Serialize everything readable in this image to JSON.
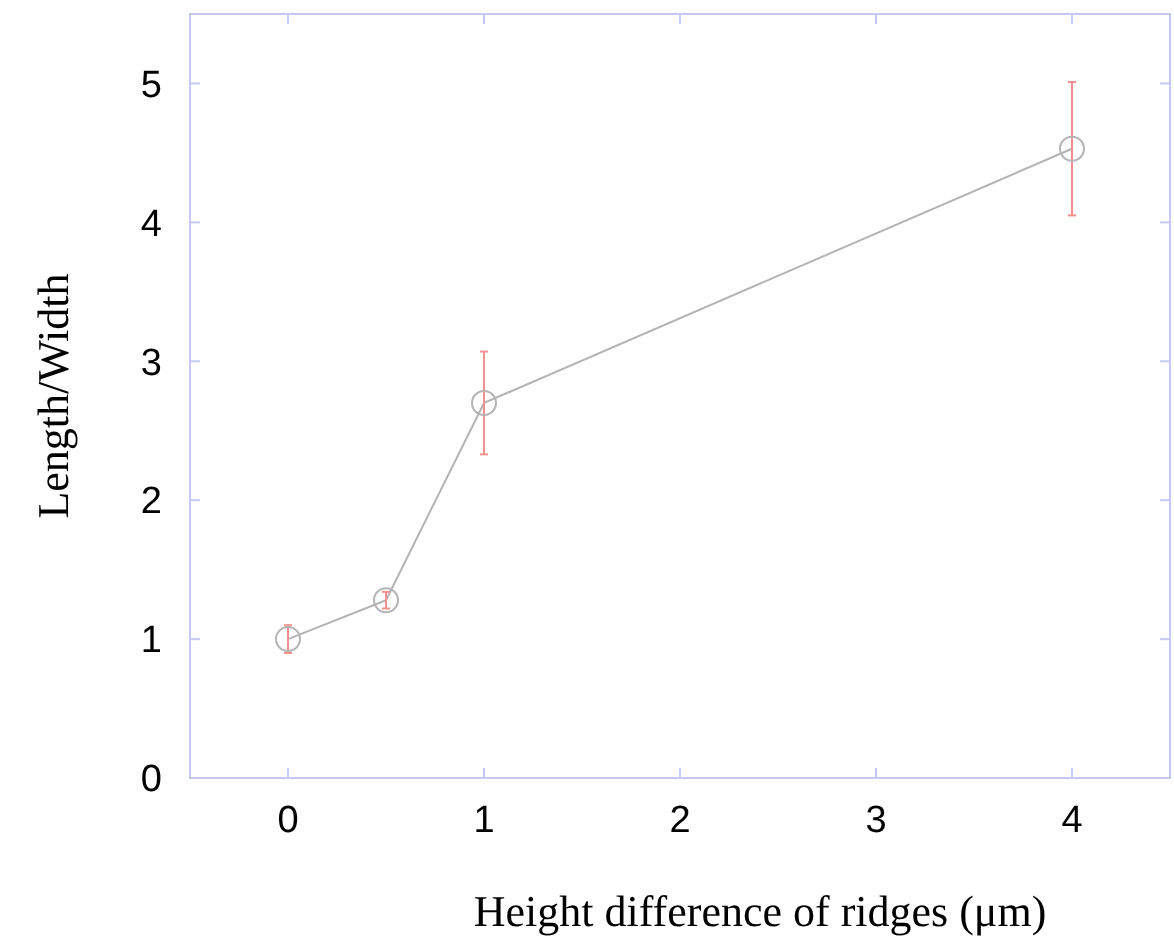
{
  "chart_data": {
    "type": "line",
    "xlabel": "Height difference of ridges (μm)",
    "ylabel": "Length/Width",
    "x": [
      0,
      0.5,
      1,
      4
    ],
    "series": [
      {
        "color": "#b4b4b4",
        "values": [
          1.0,
          1.28,
          2.7,
          4.53
        ],
        "errors": [
          0.1,
          0.06,
          0.37,
          0.48
        ]
      }
    ],
    "xlim": [
      -0.5,
      4.5
    ],
    "xticks": [
      0,
      1,
      2,
      3,
      4
    ],
    "ylim": [
      0,
      5.5
    ],
    "yticks": [
      0,
      1,
      2,
      3,
      4,
      5
    ],
    "marker": "circle",
    "line_style": "solid",
    "grid": false
  }
}
